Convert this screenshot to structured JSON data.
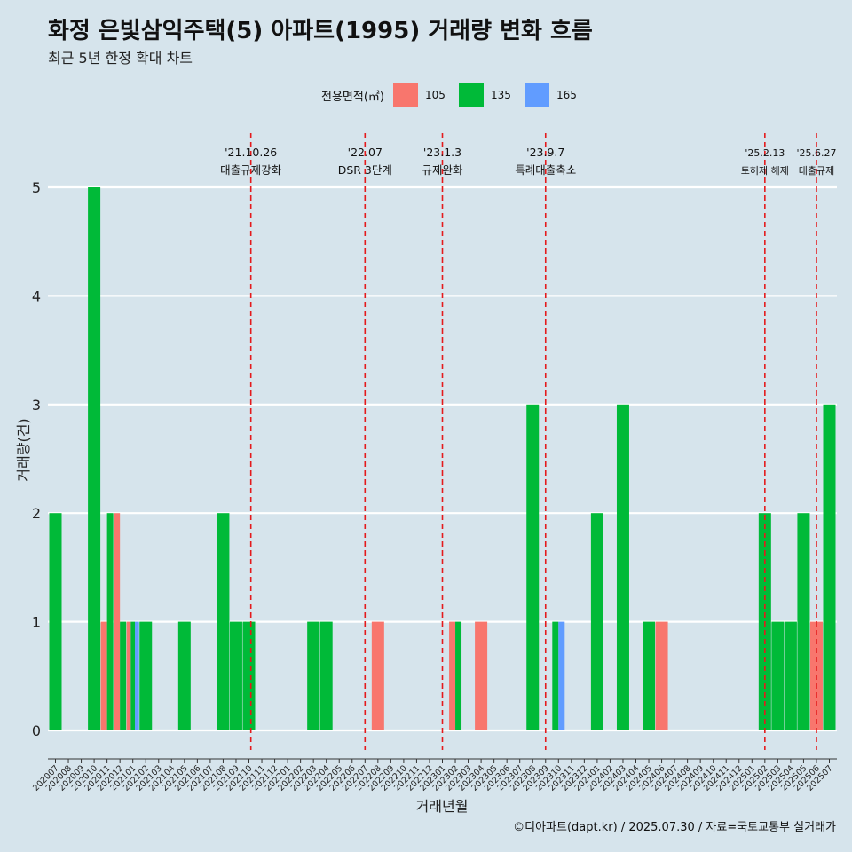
{
  "title": "화정 은빛삼익주택(5) 아파트(1995) 거래량 변화 흐름",
  "subtitle": "최근 5년 한정 확대 차트",
  "caption": "©디아파트(dapt.kr) / 2025.07.30 / 자료=국토교통부 실거래가",
  "legend": {
    "title": "전용면적(㎡)",
    "items": [
      {
        "label": "105",
        "color": "#f8766d"
      },
      {
        "label": "135",
        "color": "#00ba38"
      },
      {
        "label": "165",
        "color": "#619cff"
      }
    ]
  },
  "chart_data": {
    "type": "bar",
    "xlabel": "거래년월",
    "ylabel": "거래량(건)",
    "ylim": [
      0,
      5
    ],
    "yticks": [
      0,
      1,
      2,
      3,
      4,
      5
    ],
    "grid": true,
    "legend_position": "top",
    "categories": [
      "202007",
      "202008",
      "202009",
      "202010",
      "202011",
      "202012",
      "202101",
      "202102",
      "202103",
      "202104",
      "202105",
      "202106",
      "202107",
      "202108",
      "202109",
      "202110",
      "202111",
      "202112",
      "202201",
      "202202",
      "202203",
      "202204",
      "202205",
      "202206",
      "202207",
      "202208",
      "202209",
      "202210",
      "202211",
      "202212",
      "202301",
      "202302",
      "202303",
      "202304",
      "202305",
      "202306",
      "202307",
      "202308",
      "202309",
      "202310",
      "202311",
      "202312",
      "202401",
      "202402",
      "202403",
      "202404",
      "202405",
      "202406",
      "202407",
      "202408",
      "202409",
      "202410",
      "202411",
      "202412",
      "202501",
      "202502",
      "202503",
      "202504",
      "202505",
      "202506",
      "202507"
    ],
    "series": [
      {
        "name": "105",
        "color": "#f8766d",
        "values": {
          "202011": 1,
          "202012": 2,
          "202101": 1,
          "202208": 1,
          "202302": 1,
          "202304": 1,
          "202406": 1,
          "202506": 1
        }
      },
      {
        "name": "135",
        "color": "#00ba38",
        "values": {
          "202007": 2,
          "202010": 5,
          "202011": 2,
          "202012": 1,
          "202101": 1,
          "202102": 1,
          "202105": 1,
          "202108": 2,
          "202109": 1,
          "202110": 1,
          "202203": 1,
          "202204": 1,
          "202302": 1,
          "202308": 3,
          "202310": 1,
          "202401": 2,
          "202403": 3,
          "202405": 1,
          "202502": 2,
          "202503": 1,
          "202504": 1,
          "202505": 2,
          "202507": 3
        }
      },
      {
        "name": "165",
        "color": "#619cff",
        "values": {
          "202101": 1,
          "202310": 1
        }
      }
    ],
    "annotations": [
      {
        "date": "'21.10.26",
        "label": "대출규제강화",
        "at": "202110"
      },
      {
        "date": "'22.07",
        "label": "DSR 3단계",
        "at": "202207"
      },
      {
        "date": "'23.1.3",
        "label": "규제완화",
        "at": "202301"
      },
      {
        "date": "'23.9.7",
        "label": "특례대출축소",
        "at": "202309"
      },
      {
        "date": "'25.2.13",
        "label": "토허제 해제",
        "at": "202502"
      },
      {
        "date": "'25.6.27",
        "label": "대출규제",
        "at": "202506"
      }
    ]
  }
}
